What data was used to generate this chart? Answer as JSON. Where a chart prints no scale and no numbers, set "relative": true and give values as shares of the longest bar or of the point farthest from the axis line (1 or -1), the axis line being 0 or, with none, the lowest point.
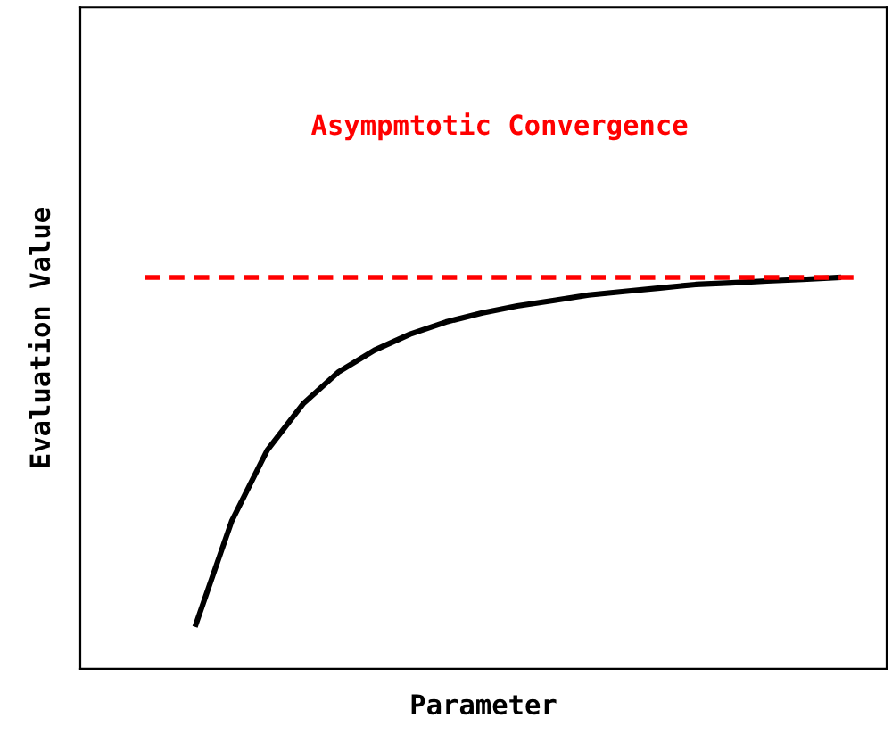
{
  "chart_data": {
    "type": "line",
    "relative": true,
    "xlabel": "Parameter",
    "ylabel": "Evaluation Value",
    "annotations": [
      "Asympmtotic Convergence"
    ],
    "categories": [
      null,
      null,
      null,
      null,
      null,
      null,
      null,
      null,
      null,
      null,
      null,
      null,
      null,
      null,
      null,
      null,
      null,
      null,
      null
    ],
    "series": [
      {
        "color": "#000000",
        "values": [
          0.114,
          0.377,
          0.559,
          0.677,
          0.759,
          0.814,
          0.855,
          0.886,
          0.909,
          0.927,
          0.941,
          0.955,
          0.964,
          0.973,
          0.982,
          0.986,
          0.991,
          0.995,
          1.0
        ]
      }
    ],
    "ref_lines": [
      {
        "axis": "y",
        "value": 1.0,
        "color": "#ff0000",
        "line_style": "dashed"
      }
    ],
    "marker": "none",
    "line_style": "solid"
  }
}
